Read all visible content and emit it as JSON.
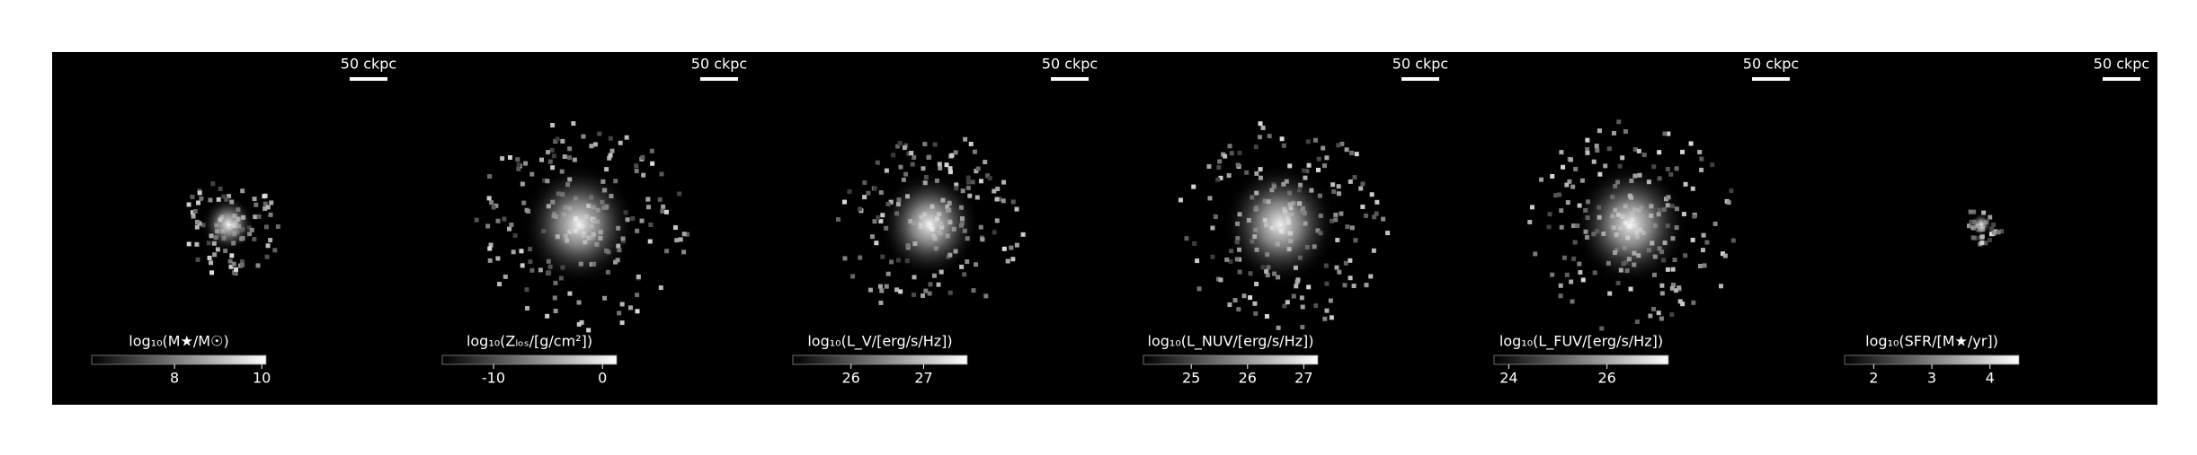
{
  "panels": [
    {
      "scale_bar": "50 ckpc",
      "colorbar": {
        "label": "log₁₀(M★/M☉)",
        "lim": [
          6.1,
          10.1
        ],
        "ticks": [
          8,
          10
        ]
      },
      "blob": 40
    },
    {
      "scale_bar": "50 ckpc",
      "colorbar": {
        "label": "log₁₀(Zₗₒₛ/[g/cm²])",
        "lim": [
          -14.7,
          1.3
        ],
        "ticks": [
          -10,
          0
        ]
      },
      "blob": 85
    },
    {
      "scale_bar": "50 ckpc",
      "colorbar": {
        "label": "log₁₀(L_V/[erg/s/Hz])",
        "lim": [
          25.2,
          27.6
        ],
        "ticks": [
          26,
          27
        ]
      },
      "blob": 75
    },
    {
      "scale_bar": "50 ckpc",
      "colorbar": {
        "label": "log₁₀(L_NUV/[erg/s/Hz])",
        "lim": [
          24.15,
          27.25
        ],
        "ticks": [
          25,
          26,
          27
        ]
      },
      "blob": 85
    },
    {
      "scale_bar": "50 ckpc",
      "colorbar": {
        "label": "log₁₀(L_FUV/[erg/s/Hz])",
        "lim": [
          23.7,
          27.25
        ],
        "ticks": [
          24,
          26
        ]
      },
      "blob": 85
    },
    {
      "scale_bar": "50 ckpc",
      "colorbar": {
        "label": "log₁₀(SFR/[M★/yr])",
        "lim": [
          1.5,
          4.5
        ],
        "ticks": [
          2,
          3,
          4
        ]
      },
      "blob": 16
    }
  ]
}
